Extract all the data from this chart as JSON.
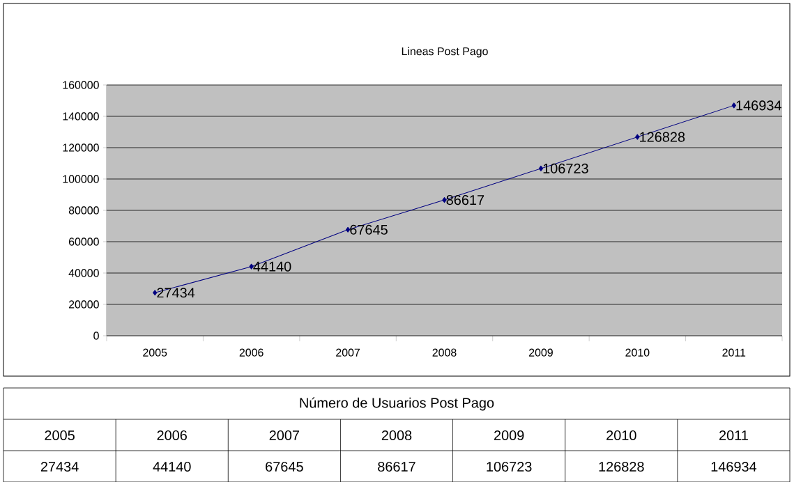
{
  "chart_data": {
    "type": "line",
    "title": "Lineas Post Pago",
    "categories": [
      "2005",
      "2006",
      "2007",
      "2008",
      "2009",
      "2010",
      "2011"
    ],
    "values": [
      27434,
      44140,
      67645,
      86617,
      106723,
      126828,
      146934
    ],
    "color": "#000080",
    "marker": "diamond",
    "grid": "y",
    "data_labels": true,
    "ylim": [
      0,
      160000
    ],
    "yticks": [
      0,
      20000,
      40000,
      60000,
      80000,
      100000,
      120000,
      140000,
      160000
    ],
    "annotations": [
      "Número de Usuarios Post Pago",
      "27434",
      "44140",
      "67645",
      "86617",
      "106723",
      "126828",
      "146934"
    ]
  }
}
